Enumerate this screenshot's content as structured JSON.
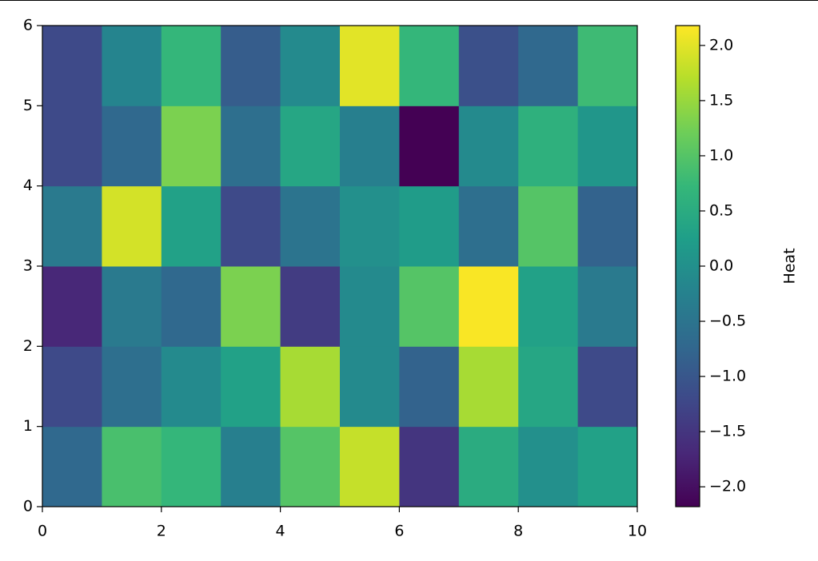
{
  "chart_data": {
    "type": "heatmap",
    "colormap": "viridis",
    "x": [
      0,
      1,
      2,
      3,
      4,
      5,
      6,
      7,
      8,
      9,
      10
    ],
    "y": [
      0,
      1,
      2,
      3,
      4,
      5,
      6
    ],
    "z": [
      [
        -0.7,
        0.9,
        0.7,
        -0.3,
        1.0,
        1.8,
        -1.5,
        0.5,
        0.0,
        0.3
      ],
      [
        -1.2,
        -0.6,
        -0.1,
        0.3,
        1.6,
        -0.1,
        -0.8,
        1.6,
        0.4,
        -1.2
      ],
      [
        -1.7,
        -0.4,
        -0.7,
        1.3,
        -1.4,
        -0.1,
        1.0,
        2.15,
        0.3,
        -0.4
      ],
      [
        -0.4,
        1.9,
        0.3,
        -1.2,
        -0.5,
        0.0,
        0.2,
        -0.6,
        1.0,
        -0.8
      ],
      [
        -1.2,
        -0.7,
        1.3,
        -0.6,
        0.4,
        -0.3,
        -2.18,
        -0.1,
        0.6,
        0.1
      ],
      [
        -1.2,
        -0.2,
        0.7,
        -0.9,
        -0.1,
        2.0,
        0.7,
        -1.1,
        -0.7,
        0.8
      ]
    ],
    "xlim": [
      0,
      10
    ],
    "ylim": [
      0,
      6
    ],
    "xticks": [
      0,
      2,
      4,
      6,
      8,
      10
    ],
    "yticks": [
      0,
      1,
      2,
      3,
      4,
      5,
      6
    ],
    "clim": [
      -2.18,
      2.18
    ],
    "colorbar_label": "Heat",
    "colorbar_ticks": [
      {
        "value": -2.0,
        "label": "−2.0"
      },
      {
        "value": -1.5,
        "label": "−1.5"
      },
      {
        "value": -1.0,
        "label": "−1.0"
      },
      {
        "value": -0.5,
        "label": "−0.5"
      },
      {
        "value": 0.0,
        "label": "0.0"
      },
      {
        "value": 0.5,
        "label": "0.5"
      },
      {
        "value": 1.0,
        "label": "1.0"
      },
      {
        "value": 1.5,
        "label": "1.5"
      },
      {
        "value": 2.0,
        "label": "2.0"
      }
    ]
  }
}
